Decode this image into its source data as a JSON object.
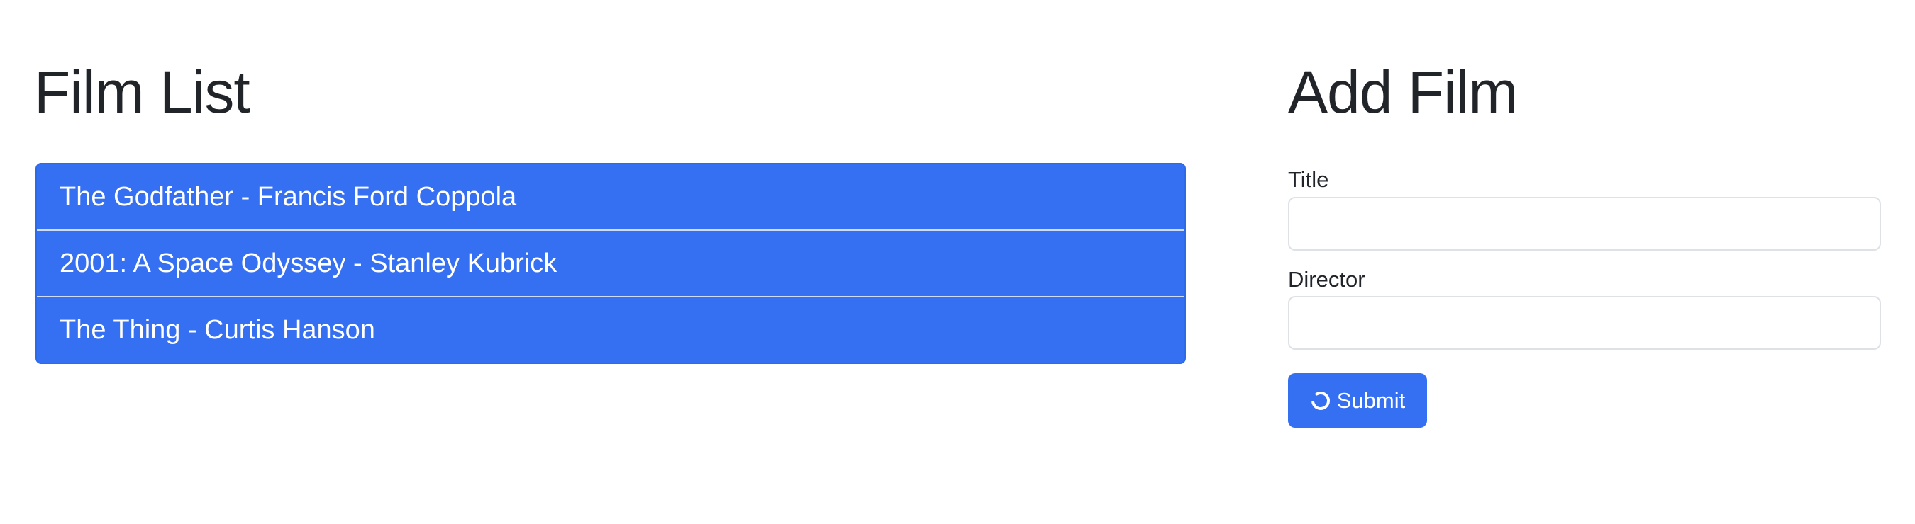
{
  "film_list": {
    "heading": "Film List",
    "items": [
      {
        "label": "The Godfather - Francis Ford Coppola"
      },
      {
        "label": "2001: A Space Odyssey - Stanley Kubrick"
      },
      {
        "label": "The Thing - Curtis Hanson"
      }
    ]
  },
  "add_film": {
    "heading": "Add Film",
    "title_label": "Title",
    "title_value": "",
    "director_label": "Director",
    "director_value": "",
    "submit_label": "Submit",
    "submit_icon": "spinner-icon"
  },
  "colors": {
    "accent": "#356ff2",
    "text": "#212529",
    "input_border": "#dee2e6"
  }
}
